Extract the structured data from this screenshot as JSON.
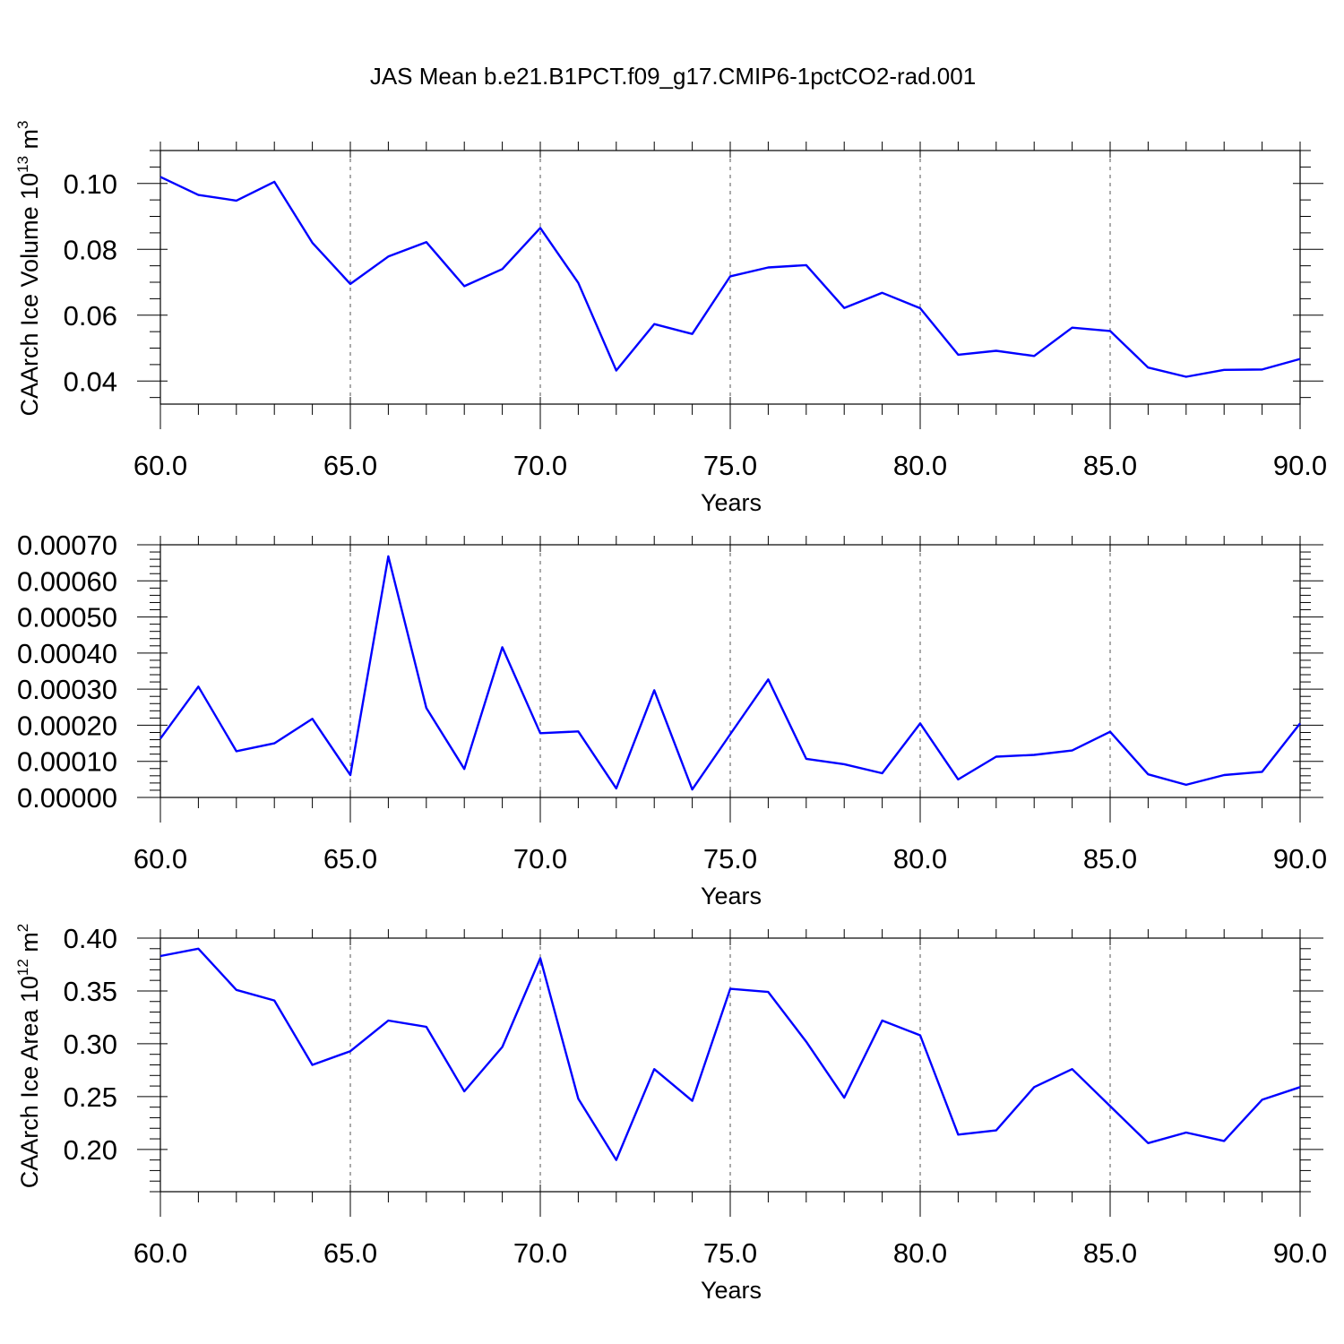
{
  "title": "JAS Mean b.e21.B1PCT.f09_g17.CMIP6-1pctCO2-rad.001",
  "colors": {
    "series": "#0000ff",
    "grid": "#555555",
    "axis": "#000000"
  },
  "chart_data": [
    {
      "type": "line",
      "xlabel": "Years",
      "ylabel": {
        "main": "CAArch Ice Volume 10",
        "sup1": "13",
        "mid": " m",
        "sup2": "3"
      },
      "xlim": [
        60,
        90
      ],
      "ylim": [
        0.033,
        0.11
      ],
      "x_ticks": [
        60,
        65,
        70,
        75,
        80,
        85,
        90
      ],
      "x_tick_labels": [
        "60.0",
        "65.0",
        "70.0",
        "75.0",
        "80.0",
        "85.0",
        "90.0"
      ],
      "y_ticks": [
        0.04,
        0.06,
        0.08,
        0.1
      ],
      "y_tick_labels": [
        "0.04",
        "0.06",
        "0.08",
        "0.10"
      ],
      "y_minor_step": 0.005,
      "grid": "vertical-dashed",
      "x": [
        60,
        61,
        62,
        63,
        64,
        65,
        66,
        67,
        68,
        69,
        70,
        71,
        72,
        73,
        74,
        75,
        76,
        77,
        78,
        79,
        80,
        81,
        82,
        83,
        84,
        85,
        86,
        87,
        88,
        89,
        90
      ],
      "series": [
        {
          "values": [
            0.102,
            0.0965,
            0.0948,
            0.1005,
            0.082,
            0.0695,
            0.0778,
            0.0822,
            0.0688,
            0.074,
            0.0865,
            0.0698,
            0.0432,
            0.0573,
            0.0543,
            0.0718,
            0.0745,
            0.0752,
            0.0622,
            0.0668,
            0.0621,
            0.048,
            0.0492,
            0.0476,
            0.0562,
            0.0552,
            0.0441,
            0.0413,
            0.0434,
            0.0435,
            0.0467
          ]
        }
      ]
    },
    {
      "type": "line",
      "xlabel": "Years",
      "ylabel": {
        "main": "",
        "sup1": "",
        "mid": "",
        "sup2": ""
      },
      "xlim": [
        60,
        90
      ],
      "ylim": [
        0,
        0.0007
      ],
      "x_ticks": [
        60,
        65,
        70,
        75,
        80,
        85,
        90
      ],
      "x_tick_labels": [
        "60.0",
        "65.0",
        "70.0",
        "75.0",
        "80.0",
        "85.0",
        "90.0"
      ],
      "y_ticks": [
        0,
        0.0001,
        0.0002,
        0.0003,
        0.0004,
        0.0005,
        0.0006,
        0.0007
      ],
      "y_tick_labels": [
        "0.00000",
        "0.00010",
        "0.00020",
        "0.00030",
        "0.00040",
        "0.00050",
        "0.00060",
        "0.00070"
      ],
      "y_minor_step": 2e-05,
      "grid": "vertical-dashed",
      "x": [
        60,
        61,
        62,
        63,
        64,
        65,
        66,
        67,
        68,
        69,
        70,
        71,
        72,
        73,
        74,
        75,
        76,
        77,
        78,
        79,
        80,
        81,
        82,
        83,
        84,
        85,
        86,
        87,
        88,
        89,
        90
      ],
      "series": [
        {
          "values": [
            0.000163,
            0.000307,
            0.000128,
            0.00015,
            0.000218,
            6.2e-05,
            0.000668,
            0.000248,
            7.9e-05,
            0.000416,
            0.000178,
            0.000183,
            2.5e-05,
            0.000297,
            2.2e-05,
            0.000175,
            0.000327,
            0.000107,
            9.2e-05,
            6.7e-05,
            0.000205,
            5e-05,
            0.000113,
            0.000118,
            0.00013,
            0.000182,
            6.4e-05,
            3.5e-05,
            6.2e-05,
            7.1e-05,
            0.000205
          ]
        }
      ]
    },
    {
      "type": "line",
      "xlabel": "Years",
      "ylabel": {
        "main": "CAArch Ice Area 10",
        "sup1": "12",
        "mid": " m",
        "sup2": "2"
      },
      "xlim": [
        60,
        90
      ],
      "ylim": [
        0.16,
        0.4
      ],
      "x_ticks": [
        60,
        65,
        70,
        75,
        80,
        85,
        90
      ],
      "x_tick_labels": [
        "60.0",
        "65.0",
        "70.0",
        "75.0",
        "80.0",
        "85.0",
        "90.0"
      ],
      "y_ticks": [
        0.2,
        0.25,
        0.3,
        0.35,
        0.4
      ],
      "y_tick_labels": [
        "0.20",
        "0.25",
        "0.30",
        "0.35",
        "0.40"
      ],
      "y_minor_step": 0.01,
      "grid": "vertical-dashed",
      "x": [
        60,
        61,
        62,
        63,
        64,
        65,
        66,
        67,
        68,
        69,
        70,
        71,
        72,
        73,
        74,
        75,
        76,
        77,
        78,
        79,
        80,
        81,
        82,
        83,
        84,
        85,
        86,
        87,
        88,
        89,
        90
      ],
      "series": [
        {
          "values": [
            0.383,
            0.39,
            0.351,
            0.341,
            0.28,
            0.293,
            0.322,
            0.316,
            0.255,
            0.297,
            0.381,
            0.248,
            0.19,
            0.276,
            0.246,
            0.352,
            0.349,
            0.302,
            0.249,
            0.322,
            0.308,
            0.214,
            0.218,
            0.259,
            0.276,
            0.241,
            0.206,
            0.216,
            0.208,
            0.247,
            0.259
          ]
        }
      ]
    }
  ]
}
